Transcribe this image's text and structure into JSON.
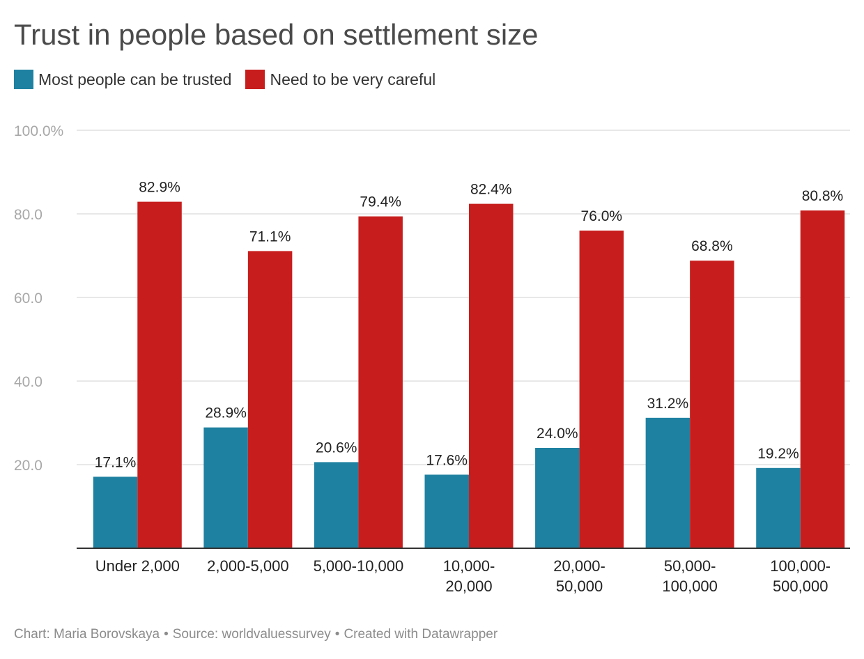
{
  "chart_data": {
    "type": "bar",
    "title": "Trust in people based on settlement size",
    "categories": [
      [
        "Under 2,000"
      ],
      [
        "2,000-5,000"
      ],
      [
        "5,000-10,000"
      ],
      [
        "10,000-",
        "20,000"
      ],
      [
        "20,000-",
        "50,000"
      ],
      [
        "50,000-",
        "100,000"
      ],
      [
        "100,000-",
        "500,000"
      ]
    ],
    "series": [
      {
        "name": "Most people can be trusted",
        "color": "#1f81a1",
        "values": [
          17.1,
          28.9,
          20.6,
          17.6,
          24.0,
          31.2,
          19.2
        ],
        "labels": [
          "17.1%",
          "28.9%",
          "20.6%",
          "17.6%",
          "24.0%",
          "31.2%",
          "19.2%"
        ]
      },
      {
        "name": "Need to be very careful",
        "color": "#c71e1d",
        "values": [
          82.9,
          71.1,
          79.4,
          82.4,
          76.0,
          68.8,
          80.8
        ],
        "labels": [
          "82.9%",
          "71.1%",
          "79.4%",
          "82.4%",
          "76.0%",
          "68.8%",
          "80.8%"
        ]
      }
    ],
    "ylim": [
      0,
      100
    ],
    "yticks": [
      {
        "value": 20,
        "label": "20.0"
      },
      {
        "value": 40,
        "label": "40.0"
      },
      {
        "value": 60,
        "label": "60.0"
      },
      {
        "value": 80,
        "label": "80.0"
      },
      {
        "value": 100,
        "label": "100.0%"
      }
    ],
    "grid": true,
    "legend_position": "top-left",
    "xlabel": "",
    "ylabel": ""
  },
  "footer": {
    "chart_credit": "Chart: Maria Borovskaya",
    "separator": "•",
    "source": "Source: worldvaluessurvey",
    "created_with": "Created with Datawrapper"
  },
  "colors": {
    "trusted": "#1f81a1",
    "careful": "#c71e1d",
    "grid": "#e0e0e0",
    "axis_label": "#a8a8a8"
  }
}
